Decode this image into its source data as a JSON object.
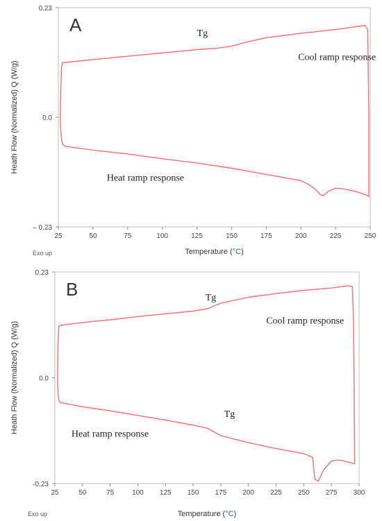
{
  "chart_data": [
    {
      "type": "line",
      "panel_label": "A",
      "xlabel": "Temperature (",
      "xunit": "°C",
      "xunit_close": ")",
      "ylabel": "Heath Flow (Normalized) Q (W/g)",
      "exo_label": "Exo up",
      "xlim": [
        25,
        250
      ],
      "ylim": [
        -0.23,
        0.23
      ],
      "xticks": [
        25,
        50,
        75,
        100,
        125,
        150,
        175,
        200,
        225,
        250
      ],
      "yticks": [
        {
          "value": 0.23,
          "label": "0.23"
        },
        {
          "value": 0.0,
          "label": "0.0"
        },
        {
          "value": -0.23,
          "label": "– 0.23"
        }
      ],
      "grid": false,
      "line_color": "#ff6b6b",
      "annotations": [
        {
          "text": "Tg",
          "x": 125,
          "y": 0.17
        },
        {
          "text": "Cool ramp response",
          "x": 198,
          "y": 0.12
        },
        {
          "text": "Heat ramp response",
          "x": 60,
          "y": -0.133
        }
      ],
      "series": [
        {
          "points": [
            [
              26.5,
              0.0
            ],
            [
              26.8,
              0.06
            ],
            [
              27.3,
              0.105
            ],
            [
              28.0,
              0.114
            ],
            [
              30,
              0.115
            ],
            [
              50,
              0.121
            ],
            [
              75,
              0.128
            ],
            [
              100,
              0.135
            ],
            [
              125,
              0.142
            ],
            [
              140,
              0.145
            ],
            [
              150,
              0.149
            ],
            [
              160,
              0.157
            ],
            [
              175,
              0.167
            ],
            [
              200,
              0.176
            ],
            [
              225,
              0.184
            ],
            [
              240,
              0.19
            ],
            [
              246,
              0.193
            ],
            [
              248.2,
              0.185
            ],
            [
              248.6,
              0.1
            ],
            [
              249,
              0.01
            ],
            [
              249,
              -0.167
            ],
            [
              248,
              -0.164
            ],
            [
              240,
              -0.156
            ],
            [
              230,
              -0.15
            ],
            [
              225,
              -0.149
            ],
            [
              220,
              -0.155
            ],
            [
              216,
              -0.165
            ],
            [
              214,
              -0.162
            ],
            [
              210,
              -0.15
            ],
            [
              205,
              -0.14
            ],
            [
              200,
              -0.133
            ],
            [
              175,
              -0.12
            ],
            [
              150,
              -0.107
            ],
            [
              125,
              -0.096
            ],
            [
              100,
              -0.087
            ],
            [
              75,
              -0.077
            ],
            [
              50,
              -0.069
            ],
            [
              30,
              -0.061
            ],
            [
              28.2,
              -0.057
            ],
            [
              27.5,
              -0.05
            ],
            [
              26.8,
              -0.03
            ],
            [
              26.5,
              0.0
            ]
          ]
        }
      ]
    },
    {
      "type": "line",
      "panel_label": "B",
      "xlabel": "Temperature (",
      "xunit": "°C",
      "xunit_close": ")",
      "ylabel": "Heath Flow (Normalized) Q (W/g)",
      "exo_label": "Exo up",
      "xlim": [
        25,
        300
      ],
      "ylim": [
        -0.23,
        0.23
      ],
      "xticks": [
        25,
        50,
        75,
        100,
        125,
        150,
        175,
        200,
        225,
        250,
        275,
        300
      ],
      "yticks": [
        {
          "value": 0.23,
          "label": "0.23"
        },
        {
          "value": 0.0,
          "label": "0.0"
        },
        {
          "value": -0.23,
          "label": "-0.23"
        }
      ],
      "grid": false,
      "line_color": "#ff6b6b",
      "annotations": [
        {
          "text": "Tg",
          "x": 161,
          "y": 0.168
        },
        {
          "text": "Cool ramp response",
          "x": 216,
          "y": 0.118
        },
        {
          "text": "Tg",
          "x": 178,
          "y": -0.085
        },
        {
          "text": "Heat ramp response",
          "x": 40,
          "y": -0.128
        }
      ],
      "series": [
        {
          "points": [
            [
              27.5,
              0.0
            ],
            [
              27.8,
              0.07
            ],
            [
              28.5,
              0.112
            ],
            [
              30,
              0.114
            ],
            [
              50,
              0.12
            ],
            [
              75,
              0.126
            ],
            [
              100,
              0.133
            ],
            [
              125,
              0.139
            ],
            [
              150,
              0.145
            ],
            [
              163,
              0.15
            ],
            [
              175,
              0.162
            ],
            [
              200,
              0.175
            ],
            [
              225,
              0.183
            ],
            [
              250,
              0.19
            ],
            [
              275,
              0.195
            ],
            [
              290,
              0.2
            ],
            [
              294,
              0.198
            ],
            [
              295,
              0.12
            ],
            [
              295.5,
              0.0
            ],
            [
              296,
              -0.185
            ],
            [
              296,
              -0.187
            ],
            [
              285,
              -0.18
            ],
            [
              280,
              -0.179
            ],
            [
              275,
              -0.181
            ],
            [
              268,
              -0.2
            ],
            [
              263,
              -0.225
            ],
            [
              260,
              -0.22
            ],
            [
              258,
              -0.173
            ],
            [
              250,
              -0.165
            ],
            [
              225,
              -0.154
            ],
            [
              200,
              -0.141
            ],
            [
              175,
              -0.126
            ],
            [
              163,
              -0.11
            ],
            [
              150,
              -0.103
            ],
            [
              125,
              -0.092
            ],
            [
              100,
              -0.082
            ],
            [
              75,
              -0.072
            ],
            [
              50,
              -0.063
            ],
            [
              30,
              -0.054
            ],
            [
              28.8,
              -0.05
            ],
            [
              28.1,
              -0.04
            ],
            [
              27.7,
              -0.02
            ],
            [
              27.5,
              0.0
            ]
          ]
        }
      ]
    }
  ]
}
